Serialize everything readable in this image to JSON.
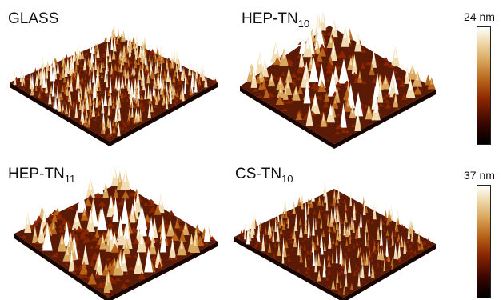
{
  "panels": [
    {
      "name": "GLASS",
      "main": "GLASS",
      "sub": ""
    },
    {
      "name": "HEP-TN10",
      "main": "HEP-TN",
      "sub": "10"
    },
    {
      "name": "HEP-TN11",
      "main": "HEP-TN",
      "sub": "11"
    },
    {
      "name": "CS-TN10",
      "main": "CS-TN",
      "sub": "10"
    }
  ],
  "scale_bars": [
    {
      "label": "24 nm"
    },
    {
      "label": "37 nm"
    }
  ],
  "colors": {
    "colormap": [
      "#000000",
      "#3a0600",
      "#8a2500",
      "#b8651a",
      "#d9a85e",
      "#f1dcb2",
      "#ffffff"
    ],
    "base": "#5a1a05"
  }
}
